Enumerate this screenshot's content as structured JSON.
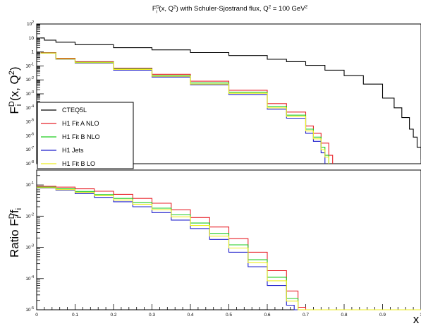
{
  "title": "F^D_i (x, Q^2) with Schuler-Sjostrand flux, Q^2 = 100 GeV^2",
  "title_parts": {
    "f": "F",
    "f_sub": "i",
    "f_sup": "D",
    "args": " (x, Q",
    "q_sup": "2",
    "mid": ") with Schuler-Sjostrand flux, Q",
    "q2_sup": "2",
    "tail": " = 100 GeV",
    "gev_sup": "2"
  },
  "top_ylabel_parts": {
    "f": "F",
    "sub": "i",
    "sup": "D",
    "args": " (x, Q",
    "q_sup": "2",
    "close": ")"
  },
  "bottom_ylabel_parts": {
    "ratio": "Ratio F",
    "sub": "i",
    "sup": "D",
    "slash": "/f",
    "sub2": "i"
  },
  "xlabel": "x",
  "chart_data": [
    {
      "type": "line",
      "panel": "top",
      "ylabel": "F^D_i (x, Q^2)",
      "yscale": "log",
      "xlim": [
        0,
        1
      ],
      "ylim": [
        1e-08,
        100
      ],
      "y_ticks": [
        {
          "value": 100,
          "label": "10",
          "exp": "2"
        },
        {
          "value": 10,
          "label": "10",
          "exp": ""
        },
        {
          "value": 1,
          "label": "1",
          "exp": ""
        },
        {
          "value": 0.1,
          "label": "10",
          "exp": "-1"
        },
        {
          "value": 0.01,
          "label": "10",
          "exp": "-2"
        },
        {
          "value": 0.001,
          "label": "10",
          "exp": "-3"
        },
        {
          "value": 0.0001,
          "label": "10",
          "exp": "-4"
        },
        {
          "value": 1e-05,
          "label": "10",
          "exp": "-5"
        },
        {
          "value": 1e-06,
          "label": "10",
          "exp": "-6"
        },
        {
          "value": 1e-07,
          "label": "10",
          "exp": "-7"
        },
        {
          "value": 1e-08,
          "label": "10",
          "exp": "-8"
        }
      ],
      "legend_position": "left",
      "series": [
        {
          "name": "CTEQ5L",
          "color": "#000000",
          "x": [
            0.01,
            0.02,
            0.05,
            0.1,
            0.2,
            0.3,
            0.4,
            0.5,
            0.6,
            0.65,
            0.7,
            0.75,
            0.8,
            0.85,
            0.9,
            0.93,
            0.95,
            0.97,
            0.98,
            0.99,
            1.0
          ],
          "y": [
            10,
            7,
            5,
            3.3,
            2.0,
            1.4,
            0.9,
            0.55,
            0.3,
            0.2,
            0.11,
            0.05,
            0.02,
            0.005,
            0.0005,
            0.0001,
            2e-05,
            3e-06,
            8e-07,
            1.5e-07,
            2e-08
          ]
        },
        {
          "name": "H1 Fit A NLO",
          "color": "#e8232a",
          "x": [
            0.01,
            0.05,
            0.1,
            0.2,
            0.3,
            0.4,
            0.5,
            0.6,
            0.65,
            0.7,
            0.72,
            0.74,
            0.76,
            0.77
          ],
          "y": [
            0.9,
            0.35,
            0.2,
            0.07,
            0.025,
            0.008,
            0.0018,
            0.0002,
            5e-05,
            5e-06,
            1.5e-06,
            3e-07,
            4e-08,
            1e-08
          ]
        },
        {
          "name": "H1 Fit B NLO",
          "color": "#1fcc1f",
          "x": [
            0.01,
            0.05,
            0.1,
            0.2,
            0.3,
            0.4,
            0.5,
            0.6,
            0.65,
            0.7,
            0.72,
            0.74,
            0.75,
            0.76
          ],
          "y": [
            0.85,
            0.32,
            0.18,
            0.06,
            0.02,
            0.006,
            0.0013,
            0.00013,
            3e-05,
            3e-06,
            8e-07,
            1.5e-07,
            4e-08,
            1e-08
          ]
        },
        {
          "name": "H1 Jets",
          "color": "#1f1fcc",
          "x": [
            0.01,
            0.05,
            0.1,
            0.2,
            0.3,
            0.4,
            0.5,
            0.6,
            0.65,
            0.7,
            0.72,
            0.74,
            0.75
          ],
          "y": [
            0.8,
            0.3,
            0.16,
            0.05,
            0.016,
            0.0045,
            0.0009,
            8e-05,
            1.8e-05,
            1.5e-06,
            4e-07,
            6e-08,
            1e-08
          ]
        },
        {
          "name": "H1 Fit B LO",
          "color": "#eeee22",
          "x": [
            0.01,
            0.05,
            0.1,
            0.2,
            0.3,
            0.4,
            0.5,
            0.6,
            0.65,
            0.7,
            0.72,
            0.74,
            0.75,
            0.76
          ],
          "y": [
            0.82,
            0.31,
            0.17,
            0.055,
            0.018,
            0.005,
            0.0011,
            0.0001,
            2.4e-05,
            2.2e-06,
            6e-07,
            1e-07,
            3e-08,
            1e-08
          ]
        }
      ]
    },
    {
      "type": "line",
      "panel": "bottom",
      "ylabel": "Ratio F^D_i/f_i",
      "yscale": "log",
      "xlabel": "x",
      "xlim": [
        0,
        1
      ],
      "ylim": [
        1e-05,
        0.3
      ],
      "x_ticks": [
        "0",
        "0.1",
        "0.2",
        "0.3",
        "0.4",
        "0.5",
        "0.6",
        "0.7",
        "0.8",
        "0.9",
        "1"
      ],
      "y_ticks": [
        {
          "value": 0.1,
          "label": "10",
          "exp": "-1"
        },
        {
          "value": 0.01,
          "label": "10",
          "exp": "-2"
        },
        {
          "value": 0.001,
          "label": "10",
          "exp": "-3"
        },
        {
          "value": 0.0001,
          "label": "10",
          "exp": "-4"
        },
        {
          "value": 1e-05,
          "label": "10",
          "exp": "-5"
        }
      ],
      "series": [
        {
          "name": "H1 Fit A NLO",
          "color": "#e8232a",
          "x": [
            0.0,
            0.05,
            0.1,
            0.15,
            0.2,
            0.25,
            0.3,
            0.35,
            0.4,
            0.45,
            0.5,
            0.55,
            0.6,
            0.65,
            0.68,
            0.7,
            0.71,
            1.0
          ],
          "y": [
            0.09,
            0.085,
            0.075,
            0.063,
            0.05,
            0.037,
            0.026,
            0.016,
            0.009,
            0.0045,
            0.0019,
            0.0007,
            0.00018,
            4e-05,
            1.2e-05,
            1e-05,
            1e-05,
            1e-05
          ]
        },
        {
          "name": "H1 Fit B NLO",
          "color": "#1fcc1f",
          "x": [
            0.0,
            0.05,
            0.1,
            0.15,
            0.2,
            0.25,
            0.3,
            0.35,
            0.4,
            0.45,
            0.5,
            0.55,
            0.6,
            0.65,
            0.68,
            0.7,
            1.0
          ],
          "y": [
            0.085,
            0.075,
            0.062,
            0.049,
            0.037,
            0.027,
            0.018,
            0.011,
            0.006,
            0.0028,
            0.0012,
            0.0004,
            0.00011,
            2.3e-05,
            1e-05,
            1e-05,
            1e-05
          ]
        },
        {
          "name": "H1 Jets",
          "color": "#1f1fcc",
          "x": [
            0.0,
            0.05,
            0.1,
            0.15,
            0.2,
            0.25,
            0.3,
            0.35,
            0.4,
            0.45,
            0.5,
            0.55,
            0.6,
            0.65,
            0.67,
            0.69,
            1.0
          ],
          "y": [
            0.08,
            0.068,
            0.053,
            0.04,
            0.029,
            0.02,
            0.013,
            0.0075,
            0.004,
            0.0018,
            0.0007,
            0.00024,
            6e-05,
            1.4e-05,
            1e-05,
            1e-05,
            1e-05
          ]
        },
        {
          "name": "H1 Fit B LO",
          "color": "#eeee22",
          "x": [
            0.0,
            0.05,
            0.1,
            0.15,
            0.2,
            0.25,
            0.3,
            0.35,
            0.4,
            0.45,
            0.5,
            0.55,
            0.6,
            0.65,
            0.68,
            0.7,
            1.0
          ],
          "y": [
            0.082,
            0.071,
            0.058,
            0.045,
            0.033,
            0.024,
            0.016,
            0.0095,
            0.005,
            0.0023,
            0.00095,
            0.00032,
            8.5e-05,
            1.9e-05,
            1e-05,
            1e-05,
            1e-05
          ]
        }
      ]
    }
  ]
}
